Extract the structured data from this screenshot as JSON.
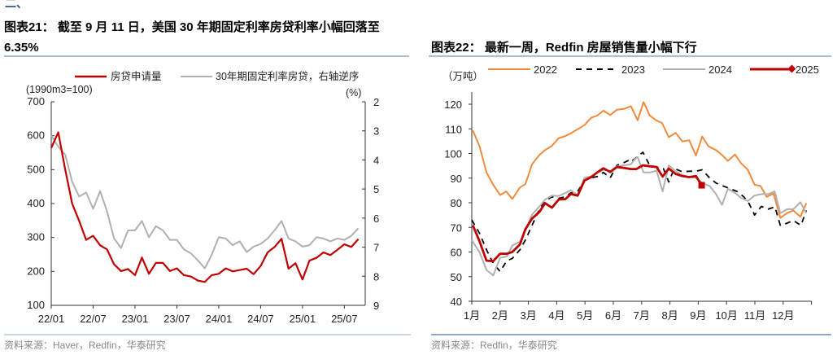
{
  "header_fragment": "二、",
  "colors": {
    "accent_line": "#8fa8c8",
    "red": "#c00000",
    "gray": "#b0b0b0",
    "orange": "#f28a3c",
    "black": "#000000"
  },
  "chart_data": [
    {
      "type": "line",
      "title_line1": "图表21：  截至 9 月 11 日，美国 30 年期固定利率房贷利率小幅回落至",
      "title_line2": "6.35%",
      "left_unit": "(1990m3=100)",
      "right_unit": "(%)",
      "ylim": [
        100,
        700
      ],
      "y_ticks": [
        "700",
        "600",
        "500",
        "400",
        "300",
        "200",
        "100"
      ],
      "y2lim": [
        2,
        9
      ],
      "y2_inverted": true,
      "y2_ticks": [
        "2",
        "3",
        "4",
        "5",
        "6",
        "7",
        "8",
        "9"
      ],
      "x_ticks": [
        "22/01",
        "22/07",
        "23/01",
        "23/07",
        "24/01",
        "24/07",
        "25/01",
        "25/07"
      ],
      "period_start": "2022-01",
      "frequency": "monthly",
      "series": [
        {
          "name": "房贷申请量",
          "axis": "left",
          "color": "#c00000",
          "values": [
            564,
            610,
            500,
            400,
            349,
            293,
            305,
            277,
            265,
            221,
            201,
            207,
            189,
            241,
            193,
            225,
            225,
            201,
            209,
            189,
            185,
            173,
            169,
            189,
            193,
            209,
            200,
            204,
            208,
            192,
            216,
            256,
            272,
            296,
            208,
            224,
            176,
            232,
            240,
            256,
            248,
            264,
            280,
            272,
            295
          ]
        },
        {
          "name": "30年期固定利率房贷，右轴逆序",
          "axis": "right",
          "color": "#b0b0b0",
          "values": [
            3.16,
            3.54,
            3.82,
            4.75,
            5.26,
            5.12,
            5.68,
            5.07,
            5.77,
            6.7,
            7.03,
            6.42,
            6.42,
            6.1,
            6.66,
            6.28,
            6.42,
            6.75,
            6.75,
            7.07,
            7.21,
            7.45,
            7.73,
            7.26,
            6.66,
            6.7,
            6.93,
            6.8,
            7.17,
            6.98,
            6.89,
            6.7,
            6.42,
            6.1,
            6.7,
            6.8,
            6.98,
            6.93,
            6.66,
            6.7,
            6.8,
            6.7,
            6.75,
            6.61,
            6.35
          ]
        }
      ],
      "source": "资料来源：Haver，Redfin，华泰研究"
    },
    {
      "type": "line",
      "title": "图表22：  最新一周，Redfin 房屋销售量小幅下行",
      "unit": "（万吨）",
      "ylim": [
        40,
        120
      ],
      "y_ticks": [
        "120",
        "110",
        "100",
        "90",
        "80",
        "70",
        "60",
        "50",
        "40"
      ],
      "x_ticks": [
        "1月",
        "2月",
        "3月",
        "4月",
        "5月",
        "6月",
        "7月",
        "8月",
        "9月",
        "10月",
        "11月",
        "12月"
      ],
      "xlim": [
        1,
        13
      ],
      "series": [
        {
          "name": "2022",
          "color": "#f28a3c",
          "style": "solid",
          "points": [
            [
              1.04,
              109.3
            ],
            [
              1.28,
              102.7
            ],
            [
              1.52,
              92.3
            ],
            [
              1.76,
              87.3
            ],
            [
              2.0,
              83.1
            ],
            [
              2.22,
              84.6
            ],
            [
              2.43,
              81.5
            ],
            [
              2.7,
              86.2
            ],
            [
              2.89,
              87.5
            ],
            [
              3.13,
              95.6
            ],
            [
              3.39,
              99.4
            ],
            [
              3.59,
              101.4
            ],
            [
              3.83,
              103.1
            ],
            [
              4.07,
              106.2
            ],
            [
              4.31,
              107.1
            ],
            [
              4.5,
              108.2
            ],
            [
              4.74,
              109.9
            ],
            [
              4.98,
              111.5
            ],
            [
              5.22,
              114.5
            ],
            [
              5.43,
              115.4
            ],
            [
              5.65,
              117.4
            ],
            [
              5.89,
              115.6
            ],
            [
              6.13,
              117.8
            ],
            [
              6.38,
              118.1
            ],
            [
              6.62,
              119.2
            ],
            [
              6.86,
              113.5
            ],
            [
              7.07,
              120.9
            ],
            [
              7.29,
              115.4
            ],
            [
              7.51,
              113.5
            ],
            [
              7.72,
              112.4
            ],
            [
              7.96,
              106.6
            ],
            [
              8.2,
              108.4
            ],
            [
              8.44,
              104.9
            ],
            [
              8.68,
              105.4
            ],
            [
              8.92,
              99.2
            ],
            [
              9.14,
              106.9
            ],
            [
              9.36,
              102.9
            ],
            [
              9.63,
              101.4
            ],
            [
              9.84,
              99.4
            ],
            [
              10.05,
              97.0
            ],
            [
              10.3,
              99.6
            ],
            [
              10.51,
              96.1
            ],
            [
              10.75,
              93.4
            ],
            [
              10.99,
              87.3
            ],
            [
              11.2,
              86.8
            ],
            [
              11.42,
              82.4
            ],
            [
              11.66,
              83.7
            ],
            [
              11.9,
              73.9
            ],
            [
              12.14,
              75.8
            ],
            [
              12.36,
              76.9
            ],
            [
              12.61,
              74.3
            ],
            [
              12.82,
              79.8
            ]
          ]
        },
        {
          "name": "2023",
          "color": "#000000",
          "style": "dashed",
          "points": [
            [
              1.0,
              73.0
            ],
            [
              1.28,
              67.5
            ],
            [
              1.52,
              60.9
            ],
            [
              1.76,
              55.4
            ],
            [
              2.0,
              52.1
            ],
            [
              2.24,
              56.5
            ],
            [
              2.43,
              57.4
            ],
            [
              2.7,
              60.9
            ],
            [
              2.89,
              64.8
            ],
            [
              3.13,
              70.8
            ],
            [
              3.39,
              77.4
            ],
            [
              3.59,
              80.7
            ],
            [
              3.83,
              82.4
            ],
            [
              4.07,
              81.8
            ],
            [
              4.31,
              82.4
            ],
            [
              4.5,
              84.0
            ],
            [
              4.74,
              84.6
            ],
            [
              4.98,
              89.0
            ],
            [
              5.22,
              90.1
            ],
            [
              5.43,
              90.6
            ],
            [
              5.65,
              92.3
            ],
            [
              5.89,
              90.1
            ],
            [
              6.13,
              95.2
            ],
            [
              6.38,
              96.3
            ],
            [
              6.62,
              97.7
            ],
            [
              6.66,
              97.0
            ],
            [
              7.05,
              100.5
            ],
            [
              7.29,
              95.0
            ],
            [
              7.53,
              94.5
            ],
            [
              7.77,
              93.9
            ],
            [
              7.96,
              88.4
            ],
            [
              8.15,
              93.9
            ],
            [
              8.44,
              92.6
            ],
            [
              8.68,
              92.8
            ],
            [
              8.92,
              92.8
            ],
            [
              9.14,
              93.4
            ],
            [
              9.4,
              90.1
            ],
            [
              9.64,
              87.9
            ],
            [
              9.88,
              86.8
            ],
            [
              10.13,
              85.7
            ],
            [
              10.37,
              84.6
            ],
            [
              10.61,
              82.4
            ],
            [
              10.8,
              79.6
            ],
            [
              10.99,
              75.0
            ],
            [
              11.23,
              78.5
            ],
            [
              11.47,
              77.4
            ],
            [
              11.71,
              78.3
            ],
            [
              11.9,
              70.8
            ],
            [
              12.14,
              71.7
            ],
            [
              12.36,
              72.8
            ],
            [
              12.63,
              70.8
            ],
            [
              12.82,
              76.9
            ]
          ]
        },
        {
          "name": "2024",
          "color": "#b0b0b0",
          "style": "solid",
          "points": [
            [
              1.0,
              64.8
            ],
            [
              1.28,
              59.8
            ],
            [
              1.52,
              52.7
            ],
            [
              1.76,
              50.5
            ],
            [
              2.0,
              57.6
            ],
            [
              2.24,
              58.2
            ],
            [
              2.43,
              62.6
            ],
            [
              2.7,
              64.2
            ],
            [
              2.89,
              68.6
            ],
            [
              3.13,
              75.2
            ],
            [
              3.39,
              78.5
            ],
            [
              3.59,
              81.3
            ],
            [
              3.83,
              82.9
            ],
            [
              4.07,
              82.7
            ],
            [
              4.31,
              84.0
            ],
            [
              4.5,
              85.1
            ],
            [
              4.74,
              82.9
            ],
            [
              4.98,
              90.1
            ],
            [
              5.22,
              90.8
            ],
            [
              5.43,
              92.3
            ],
            [
              5.65,
              93.4
            ],
            [
              5.89,
              92.8
            ],
            [
              6.13,
              94.8
            ],
            [
              6.38,
              95.2
            ],
            [
              6.62,
              95.6
            ],
            [
              6.76,
              97.7
            ],
            [
              6.86,
              98.5
            ],
            [
              7.07,
              92.3
            ],
            [
              7.29,
              92.3
            ],
            [
              7.53,
              93.0
            ],
            [
              7.74,
              84.6
            ],
            [
              7.96,
              95.2
            ],
            [
              8.2,
              92.8
            ],
            [
              8.44,
              91.2
            ],
            [
              8.68,
              90.4
            ],
            [
              8.92,
              90.1
            ],
            [
              9.16,
              87.9
            ],
            [
              9.4,
              86.8
            ],
            [
              9.63,
              83.5
            ],
            [
              9.84,
              79.1
            ],
            [
              10.05,
              85.7
            ],
            [
              10.3,
              84.0
            ],
            [
              10.51,
              82.0
            ],
            [
              10.75,
              80.7
            ],
            [
              10.99,
              82.9
            ],
            [
              11.23,
              83.5
            ],
            [
              11.47,
              83.5
            ],
            [
              11.7,
              84.6
            ],
            [
              11.9,
              75.8
            ],
            [
              12.14,
              77.4
            ],
            [
              12.36,
              77.4
            ],
            [
              12.61,
              80.2
            ],
            [
              12.82,
              75.8
            ]
          ]
        },
        {
          "name": "2025",
          "color": "#c00000",
          "style": "solid-marker",
          "points": [
            [
              1.04,
              70.8
            ],
            [
              1.28,
              64.2
            ],
            [
              1.52,
              56.5
            ],
            [
              1.76,
              56.3
            ],
            [
              2.0,
              59.3
            ],
            [
              2.24,
              59.3
            ],
            [
              2.43,
              60.0
            ],
            [
              2.7,
              63.1
            ],
            [
              2.89,
              69.2
            ],
            [
              3.13,
              73.6
            ],
            [
              3.39,
              76.3
            ],
            [
              3.59,
              79.8
            ],
            [
              3.83,
              78.0
            ],
            [
              4.07,
              81.3
            ],
            [
              4.31,
              81.5
            ],
            [
              4.5,
              83.5
            ],
            [
              4.74,
              82.9
            ],
            [
              4.98,
              89.0
            ],
            [
              5.22,
              90.4
            ],
            [
              5.43,
              92.3
            ],
            [
              5.65,
              94.0
            ],
            [
              5.89,
              92.5
            ],
            [
              6.13,
              94.5
            ],
            [
              6.38,
              94.1
            ],
            [
              6.62,
              93.7
            ],
            [
              6.81,
              93.7
            ],
            [
              7.05,
              95.2
            ],
            [
              7.29,
              94.8
            ],
            [
              7.53,
              94.5
            ],
            [
              7.74,
              90.6
            ],
            [
              7.96,
              93.9
            ],
            [
              8.2,
              91.7
            ],
            [
              8.44,
              90.8
            ],
            [
              8.68,
              90.4
            ],
            [
              8.92,
              90.8
            ],
            [
              9.12,
              87.1
            ]
          ]
        }
      ],
      "source": "资料来源：Redfin，华泰研究"
    }
  ]
}
